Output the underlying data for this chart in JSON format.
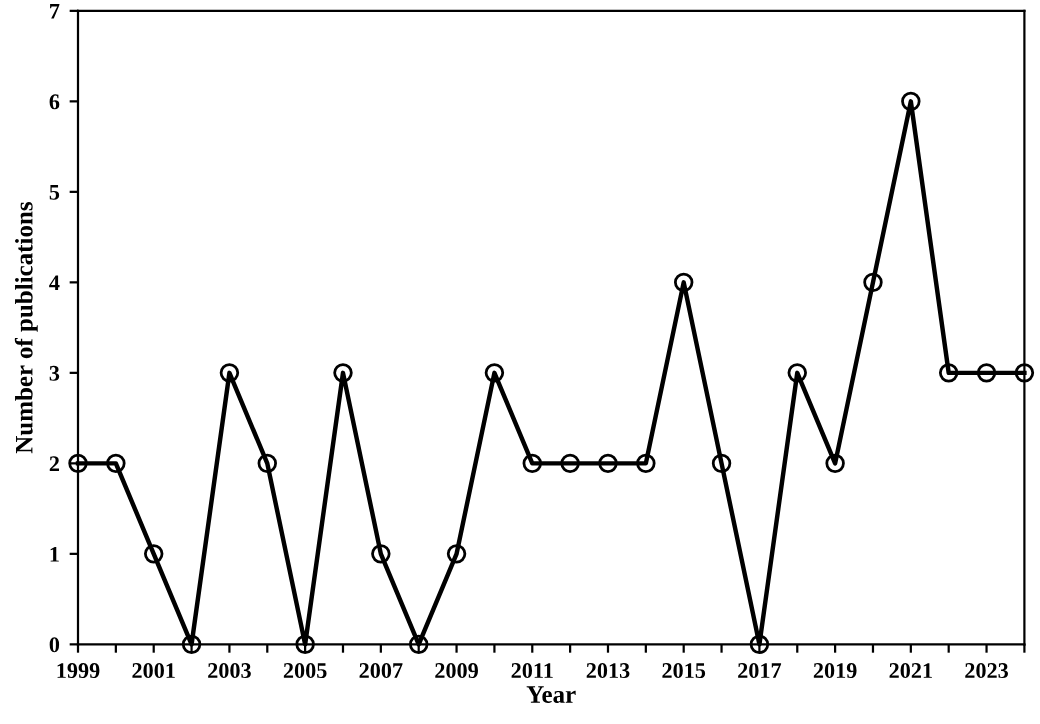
{
  "chart_data": {
    "type": "line",
    "xlabel": "Year",
    "ylabel": "Number of publications",
    "x": [
      1999,
      2000,
      2001,
      2002,
      2003,
      2004,
      2005,
      2006,
      2007,
      2008,
      2009,
      2010,
      2011,
      2012,
      2013,
      2014,
      2015,
      2016,
      2017,
      2018,
      2019,
      2020,
      2021,
      2022,
      2023,
      2024
    ],
    "series": [
      {
        "color": "#000000",
        "values": [
          2,
          2,
          1,
          0,
          3,
          2,
          0,
          3,
          1,
          0,
          1,
          3,
          2,
          2,
          2,
          2,
          4,
          2,
          0,
          3,
          2,
          4,
          6,
          3,
          3,
          3
        ]
      }
    ],
    "xlim": [
      1999,
      2024
    ],
    "xticks": [
      1999,
      {
        "value": 2000,
        "label": null
      },
      2001,
      {
        "value": 2002,
        "label": null
      },
      2003,
      {
        "value": 2004,
        "label": null
      },
      2005,
      {
        "value": 2006,
        "label": null
      },
      2007,
      {
        "value": 2008,
        "label": null
      },
      2009,
      {
        "value": 2010,
        "label": null
      },
      2011,
      {
        "value": 2012,
        "label": null
      },
      2013,
      {
        "value": 2014,
        "label": null
      },
      2015,
      {
        "value": 2016,
        "label": null
      },
      2017,
      {
        "value": 2018,
        "label": null
      },
      2019,
      {
        "value": 2020,
        "label": null
      },
      2021,
      {
        "value": 2022,
        "label": null
      },
      2023,
      {
        "value": 2024,
        "label": null
      }
    ],
    "ylim": [
      0,
      7
    ],
    "yticks": [
      0,
      1,
      2,
      3,
      4,
      5,
      6,
      7
    ],
    "marker": "circle",
    "line_style": "solid"
  }
}
